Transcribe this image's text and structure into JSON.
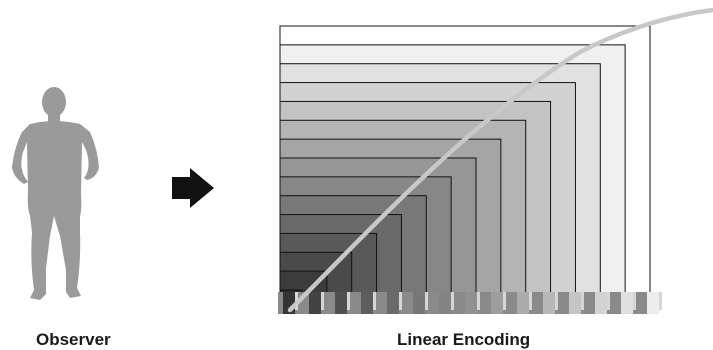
{
  "captions": {
    "observer": "Observer",
    "encoding": "Linear Encoding"
  },
  "icons": {
    "observer": "person-silhouette-icon",
    "arrow": "right-arrow-icon"
  },
  "colors": {
    "silhouette": "#9a9a9a",
    "arrow": "#111111",
    "curve": "#c8c8c8",
    "step_lines": "#111111"
  },
  "diagram": {
    "step_count": 15,
    "tone_start": "#1a1a1a",
    "tone_end": "#ffffff"
  }
}
